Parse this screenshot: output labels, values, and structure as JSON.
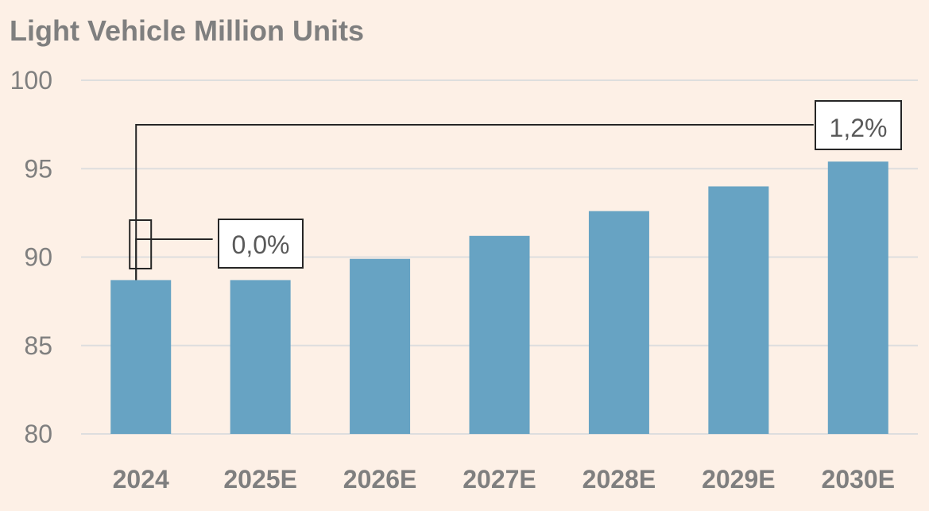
{
  "chart_data": {
    "type": "bar",
    "title": "Light Vehicle Million Units",
    "categories": [
      "2024",
      "2025E",
      "2026E",
      "2027E",
      "2028E",
      "2029E",
      "2030E"
    ],
    "values": [
      88.7,
      88.7,
      89.9,
      91.2,
      92.6,
      94.0,
      95.4
    ],
    "ylim": [
      80,
      100
    ],
    "yticks": [
      80,
      85,
      90,
      95,
      100
    ],
    "ytick_labels": [
      "80",
      "85",
      "90",
      "95",
      "100"
    ],
    "grid": true,
    "bar_color": "#67a3c3",
    "background_color": "#fdf0e6",
    "annotations": [
      {
        "text": "0,0%",
        "from_category": "2024",
        "to_category": "2025E"
      },
      {
        "text": "1,2%",
        "from_category": "2024",
        "to_category": "2030E"
      }
    ]
  }
}
